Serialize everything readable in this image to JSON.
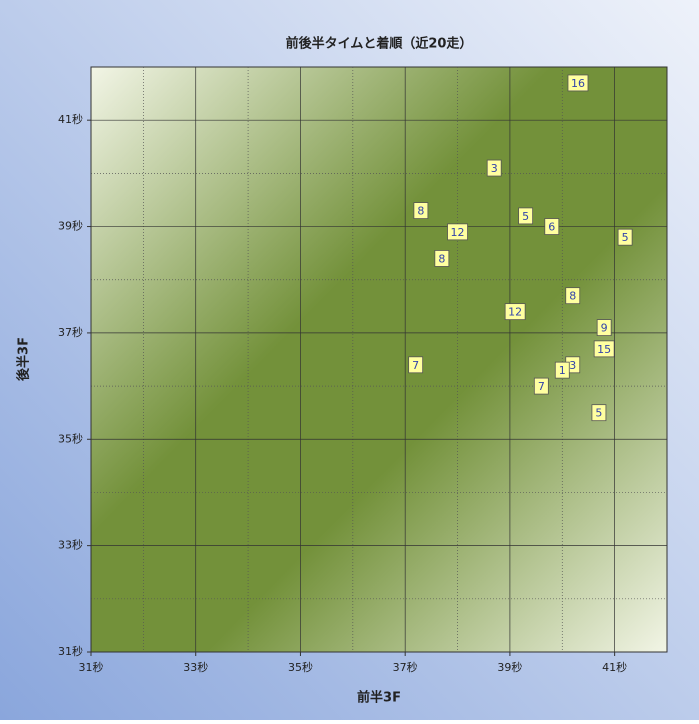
{
  "chart_data": {
    "type": "scatter",
    "title": "前後半タイムと着順（近20走）",
    "x_label": "前半3F",
    "y_label": "後半3F",
    "x": [
      40.3,
      38.7,
      37.3,
      39.3,
      38.0,
      39.8,
      41.2,
      37.7,
      40.2,
      39.1,
      40.8,
      40.8,
      37.2,
      40.2,
      40.0,
      39.6,
      40.7
    ],
    "y": [
      41.7,
      40.1,
      39.3,
      39.2,
      38.9,
      39.0,
      38.8,
      38.4,
      37.7,
      37.4,
      37.1,
      36.7,
      36.4,
      36.4,
      36.3,
      36.0,
      35.5
    ],
    "point_labels": [
      "16",
      "3",
      "8",
      "5",
      "12",
      "6",
      "5",
      "8",
      "8",
      "12",
      "9",
      "15",
      "7",
      "3",
      "1",
      "7",
      "5"
    ],
    "xlim": [
      31,
      42
    ],
    "ylim": [
      31,
      42
    ],
    "xticks": [
      {
        "value": 31,
        "label": "31秒"
      },
      {
        "value": 33,
        "label": "33秒"
      },
      {
        "value": 35,
        "label": "35秒"
      },
      {
        "value": 37,
        "label": "37秒"
      },
      {
        "value": 39,
        "label": "39秒"
      },
      {
        "value": 41,
        "label": "41秒"
      }
    ],
    "yticks": [
      {
        "value": 31,
        "label": "31秒"
      },
      {
        "value": 33,
        "label": "33秒"
      },
      {
        "value": 35,
        "label": "35秒"
      },
      {
        "value": 37,
        "label": "37秒"
      },
      {
        "value": 39,
        "label": "39秒"
      },
      {
        "value": 41,
        "label": "41秒"
      }
    ],
    "minor_grid": [
      32,
      34,
      36,
      38,
      40
    ],
    "grid": true,
    "marker_color": "#ffffa0"
  }
}
